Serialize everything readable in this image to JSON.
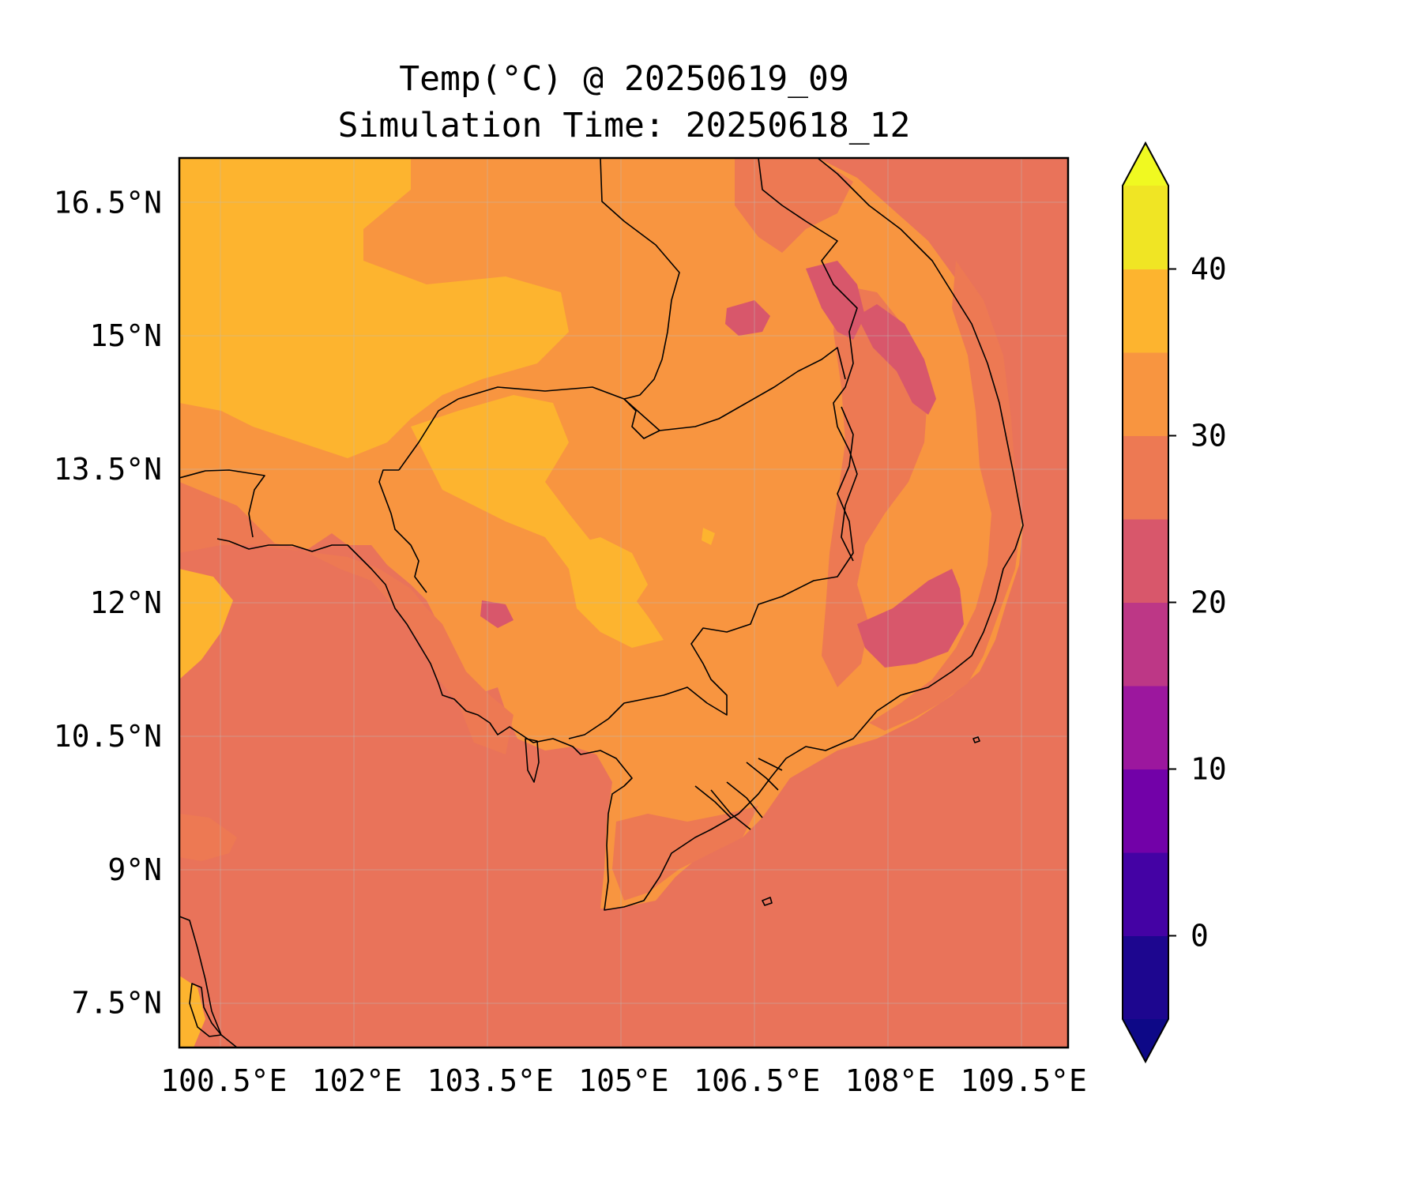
{
  "title": {
    "line1": "Temp(°C) @ 20250619_09",
    "line2": "Simulation Time: 20250618_12"
  },
  "map": {
    "lon_range": [
      100.0,
      110.0
    ],
    "lat_range": [
      7.0,
      17.0
    ],
    "x_ticks": [
      {
        "value": 100.5,
        "label": "100.5°E"
      },
      {
        "value": 102.0,
        "label": "102°E"
      },
      {
        "value": 103.5,
        "label": "103.5°E"
      },
      {
        "value": 105.0,
        "label": "105°E"
      },
      {
        "value": 106.5,
        "label": "106.5°E"
      },
      {
        "value": 108.0,
        "label": "108°E"
      },
      {
        "value": 109.5,
        "label": "109.5°E"
      }
    ],
    "y_ticks": [
      {
        "value": 16.5,
        "label": "16.5°N"
      },
      {
        "value": 15.0,
        "label": "15°N"
      },
      {
        "value": 13.5,
        "label": "13.5°N"
      },
      {
        "value": 12.0,
        "label": "12°N"
      },
      {
        "value": 10.5,
        "label": "10.5°N"
      },
      {
        "value": 9.0,
        "label": "9°N"
      },
      {
        "value": 7.5,
        "label": "7.5°N"
      }
    ],
    "gridlines": true,
    "ocean_fill_color": "#e9735a"
  },
  "colorbar": {
    "levels": [
      -5,
      0,
      5,
      10,
      15,
      20,
      25,
      30,
      35,
      40,
      45
    ],
    "colors": [
      "#1d068f",
      "#4402a4",
      "#7201a8",
      "#9c179e",
      "#bd3786",
      "#d8576b",
      "#ed7953",
      "#f89540",
      "#fdb42f",
      "#f0e524"
    ],
    "under_color": "#0d0887",
    "over_color": "#f0f921",
    "extend": "both",
    "ticks": [
      {
        "value": 0,
        "label": "0"
      },
      {
        "value": 10,
        "label": "10"
      },
      {
        "value": 20,
        "label": "20"
      },
      {
        "value": 30,
        "label": "30"
      },
      {
        "value": 40,
        "label": "40"
      }
    ]
  }
}
